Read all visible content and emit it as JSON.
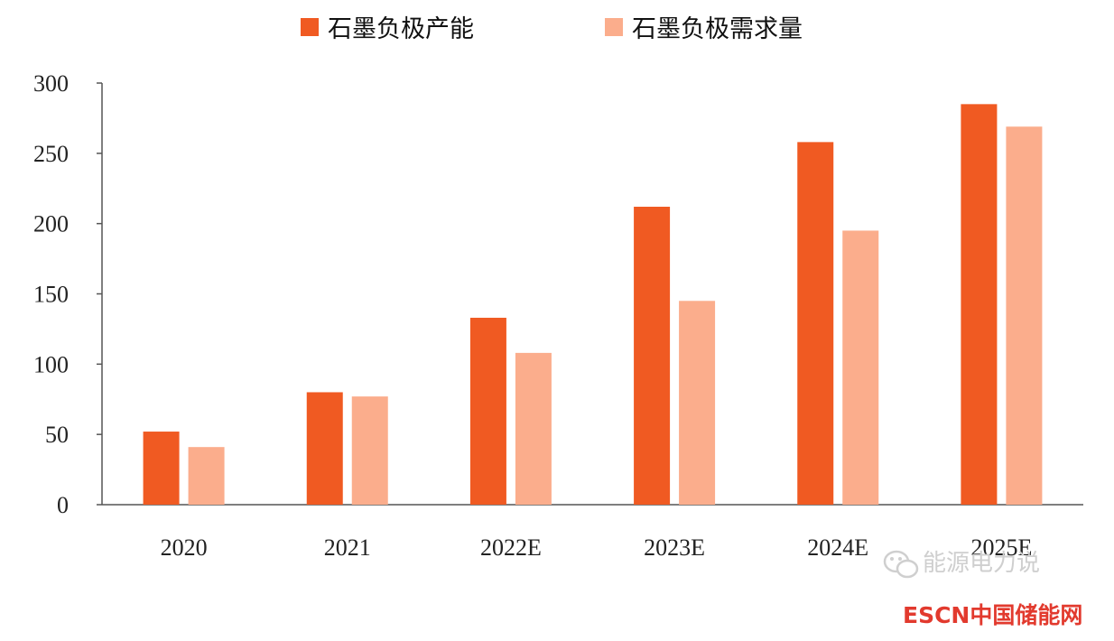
{
  "chart_data": {
    "type": "bar",
    "categories": [
      "2020",
      "2021",
      "2022E",
      "2023E",
      "2024E",
      "2025E"
    ],
    "series": [
      {
        "name": "石墨负极产能",
        "color": "#f05a22",
        "values": [
          52,
          80,
          133,
          212,
          258,
          285
        ]
      },
      {
        "name": "石墨负极需求量",
        "color": "#fbad8c",
        "values": [
          41,
          77,
          108,
          145,
          195,
          269
        ]
      }
    ],
    "yticks": [
      0,
      50,
      100,
      150,
      200,
      250,
      300
    ],
    "ylim": [
      0,
      300
    ],
    "legend": "top-center",
    "grid": false
  },
  "watermark": {
    "text": "能源电力说",
    "icon": "wechat-icon"
  },
  "logo": {
    "text": "ESCN中国储能网",
    "color": "#e23a2e"
  }
}
